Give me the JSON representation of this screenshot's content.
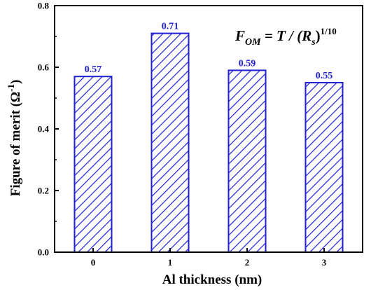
{
  "chart_data": {
    "type": "bar",
    "categories": [
      "0",
      "1",
      "2",
      "3"
    ],
    "values": [
      0.57,
      0.71,
      0.59,
      0.55
    ],
    "data_labels": [
      "0.57",
      "0.71",
      "0.59",
      "0.55"
    ],
    "xlabel": "Al thickness (nm)",
    "ylabel": {
      "main": "Figure of merit (Ω",
      "sup": "-1",
      "close": ")"
    },
    "ylim": [
      0.0,
      0.8
    ],
    "yticks": [
      "0.0",
      "0.2",
      "0.4",
      "0.6",
      "0.8"
    ],
    "grid": false,
    "bar_fill": "hatched diagonal",
    "colors": {
      "bar": "#1f1fd6",
      "label": "#1f1fd6",
      "axis": "#000000"
    },
    "annotation": {
      "F": "F",
      "F_sub": "OM",
      "eq": " = T / (R",
      "R_sub": "s",
      "close": ")",
      "exp": "1/10"
    }
  }
}
